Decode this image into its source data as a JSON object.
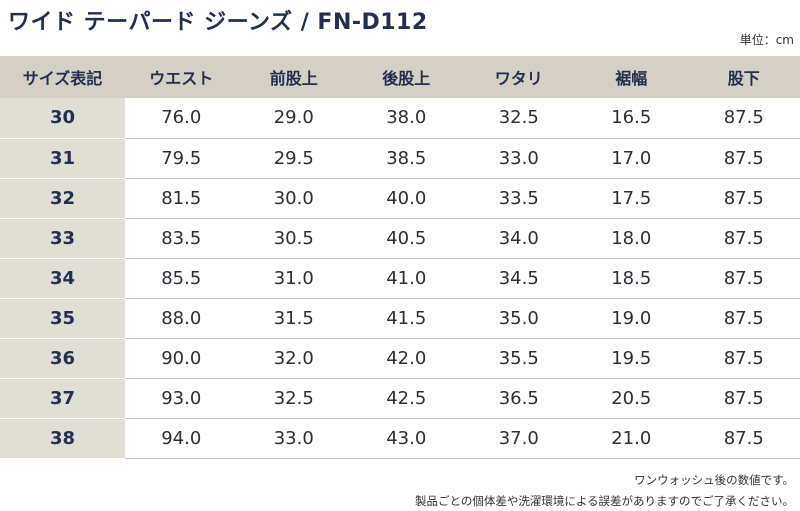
{
  "title": "ワイド テーパード ジーンズ / FN-D112",
  "unit": "単位：cm",
  "table": {
    "headers": [
      "サイズ表記",
      "ウエスト",
      "前股上",
      "後股上",
      "ワタリ",
      "裾幅",
      "股下"
    ],
    "rows": [
      [
        "30",
        "76.0",
        "29.0",
        "38.0",
        "32.5",
        "16.5",
        "87.5"
      ],
      [
        "31",
        "79.5",
        "29.5",
        "38.5",
        "33.0",
        "17.0",
        "87.5"
      ],
      [
        "32",
        "81.5",
        "30.0",
        "40.0",
        "33.5",
        "17.5",
        "87.5"
      ],
      [
        "33",
        "83.5",
        "30.5",
        "40.5",
        "34.0",
        "18.0",
        "87.5"
      ],
      [
        "34",
        "85.5",
        "31.0",
        "41.0",
        "34.5",
        "18.5",
        "87.5"
      ],
      [
        "35",
        "88.0",
        "31.5",
        "41.5",
        "35.0",
        "19.0",
        "87.5"
      ],
      [
        "36",
        "90.0",
        "32.0",
        "42.0",
        "35.5",
        "19.5",
        "87.5"
      ],
      [
        "37",
        "93.0",
        "32.5",
        "42.5",
        "36.5",
        "20.5",
        "87.5"
      ],
      [
        "38",
        "94.0",
        "33.0",
        "43.0",
        "37.0",
        "21.0",
        "87.5"
      ]
    ]
  },
  "notes": {
    "line1": "ワンウォッシュ後の数値です。",
    "line2": "製品ごとの個体差や洗濯環境による誤差がありますのでご了承ください。"
  }
}
